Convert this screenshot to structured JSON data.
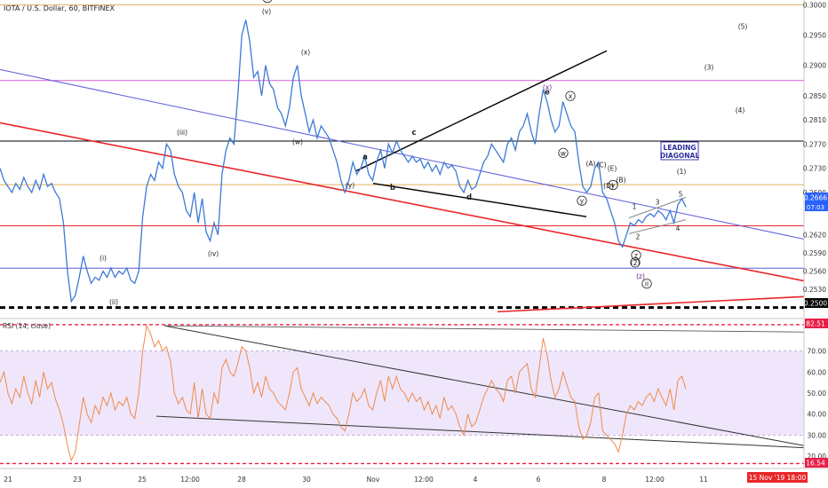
{
  "header": {
    "symbol_title": "IOTA / U.S. Dollar, 60, BITFINEX"
  },
  "rsi_panel": {
    "label": "RSI (14, close)"
  },
  "colors": {
    "price": "#3d7ad6",
    "rsi": "#f08a4b",
    "rsi_band": "#efe6fb",
    "red": "#e8262a",
    "blue": "#5b5bd9",
    "magenta": "#d55bd5",
    "orange": "#e0b15a",
    "black": "#000000",
    "last_price_bg": "#2962ff",
    "red_tag": "#e91e48"
  },
  "price_scale": {
    "ticks": [
      "0.3000",
      "0.2950",
      "0.2900",
      "0.2850",
      "0.2810",
      "0.2770",
      "0.2730",
      "0.2690",
      "0.2620",
      "0.2590",
      "0.2560",
      "0.2530"
    ],
    "last_price": "0.2666",
    "countdown": "07:03",
    "tag_2500": "0.2500"
  },
  "rsi_scale": {
    "ticks": [
      "70.00",
      "60.00",
      "50.00",
      "40.00",
      "30.00",
      "20.00"
    ],
    "top_tag": "82.51",
    "bottom_tag": "16.54"
  },
  "time_axis": {
    "ticks": [
      "21",
      "23",
      "25",
      "12:00",
      "28",
      "30",
      "Nov",
      "12:00",
      "4",
      "6",
      "8",
      "12:00",
      "11"
    ],
    "current_tag": "15 Nov '19   18:00"
  },
  "wave_labels": [
    "(i)",
    "(ii)",
    "(iii)",
    "(iv)",
    "(v)",
    "(x)",
    "(w)",
    "(y)",
    "(x)",
    "(z)",
    "(1)",
    "(2)",
    "(3)",
    "(4)",
    "(5)",
    "(A)",
    "(B)",
    "(C)",
    "(D)",
    "(E)",
    "a",
    "b",
    "c",
    "d",
    "e",
    "1",
    "2",
    "3",
    "4",
    "5",
    "i",
    "ii",
    "w",
    "x",
    "y",
    "z",
    "v"
  ],
  "annotations": {
    "leading_diagonal": [
      "LEADING",
      "DIAGONAL"
    ]
  },
  "chart_data": {
    "type": "line",
    "title": "IOTA / U.S. Dollar, 60, BITFINEX",
    "price_series": {
      "name": "IOTA/USD",
      "values": [
        0.273,
        0.271,
        0.27,
        0.269,
        0.2705,
        0.2695,
        0.2715,
        0.27,
        0.269,
        0.271,
        0.2695,
        0.272,
        0.27,
        0.2705,
        0.269,
        0.268,
        0.264,
        0.256,
        0.251,
        0.252,
        0.255,
        0.2585,
        0.256,
        0.254,
        0.255,
        0.2545,
        0.256,
        0.255,
        0.2565,
        0.255,
        0.256,
        0.2555,
        0.2565,
        0.2545,
        0.254,
        0.256,
        0.265,
        0.27,
        0.272,
        0.271,
        0.274,
        0.273,
        0.277,
        0.276,
        0.272,
        0.27,
        0.269,
        0.266,
        0.265,
        0.269,
        0.264,
        0.268,
        0.2625,
        0.261,
        0.264,
        0.262,
        0.272,
        0.276,
        0.278,
        0.277,
        0.285,
        0.295,
        0.2975,
        0.294,
        0.288,
        0.289,
        0.285,
        0.29,
        0.287,
        0.286,
        0.283,
        0.282,
        0.28,
        0.283,
        0.288,
        0.29,
        0.285,
        0.282,
        0.279,
        0.281,
        0.278,
        0.28,
        0.279,
        0.278,
        0.276,
        0.274,
        0.271,
        0.269,
        0.271,
        0.274,
        0.272,
        0.273,
        0.275,
        0.272,
        0.271,
        0.274,
        0.276,
        0.273,
        0.277,
        0.2755,
        0.2775,
        0.276,
        0.275,
        0.274,
        0.275,
        0.274,
        0.2745,
        0.273,
        0.274,
        0.2725,
        0.2735,
        0.272,
        0.274,
        0.273,
        0.2735,
        0.2725,
        0.27,
        0.269,
        0.271,
        0.2695,
        0.27,
        0.272,
        0.274,
        0.275,
        0.277,
        0.276,
        0.275,
        0.274,
        0.277,
        0.278,
        0.276,
        0.279,
        0.28,
        0.282,
        0.279,
        0.277,
        0.282,
        0.286,
        0.284,
        0.281,
        0.279,
        0.28,
        0.284,
        0.282,
        0.28,
        0.279,
        0.274,
        0.27,
        0.269,
        0.27,
        0.273,
        0.274,
        0.269,
        0.268,
        0.266,
        0.264,
        0.261,
        0.26,
        0.262,
        0.264,
        0.2635,
        0.2645,
        0.264,
        0.265,
        0.2655,
        0.265,
        0.266,
        0.2655,
        0.2645,
        0.266,
        0.264,
        0.267,
        0.268,
        0.2666
      ]
    },
    "rsi_series": {
      "name": "RSI (14, close)",
      "values": [
        55,
        60,
        50,
        45,
        52,
        48,
        58,
        50,
        45,
        56,
        48,
        60,
        52,
        55,
        47,
        42,
        35,
        25,
        18,
        22,
        35,
        48,
        40,
        36,
        44,
        40,
        48,
        44,
        50,
        42,
        46,
        44,
        48,
        40,
        38,
        50,
        70,
        82,
        78,
        72,
        75,
        70,
        72,
        65,
        50,
        45,
        48,
        42,
        40,
        55,
        38,
        52,
        40,
        38,
        50,
        45,
        62,
        66,
        60,
        58,
        64,
        72,
        70,
        62,
        50,
        55,
        48,
        58,
        52,
        50,
        46,
        44,
        42,
        50,
        60,
        62,
        52,
        48,
        44,
        50,
        45,
        48,
        46,
        44,
        40,
        38,
        34,
        32,
        40,
        50,
        46,
        48,
        52,
        44,
        42,
        50,
        56,
        46,
        58,
        52,
        58,
        52,
        50,
        46,
        50,
        46,
        48,
        42,
        46,
        40,
        44,
        38,
        48,
        42,
        44,
        40,
        34,
        30,
        40,
        34,
        36,
        42,
        48,
        52,
        56,
        52,
        50,
        46,
        56,
        58,
        50,
        60,
        62,
        64,
        52,
        48,
        62,
        76,
        68,
        56,
        48,
        52,
        60,
        54,
        48,
        46,
        34,
        28,
        30,
        36,
        48,
        50,
        32,
        30,
        28,
        26,
        22,
        30,
        40,
        44,
        42,
        46,
        44,
        48,
        50,
        46,
        52,
        48,
        44,
        52,
        42,
        56,
        58,
        52
      ]
    },
    "x_tick_labels": [
      "21",
      "23",
      "25",
      "12:00",
      "28",
      "30",
      "Nov",
      "12:00",
      "4",
      "6",
      "8",
      "12:00",
      "11"
    ],
    "y_range": [
      0.2495,
      0.3005
    ],
    "rsi_range": [
      15,
      85
    ],
    "horizontal_levels": [
      0.3,
      0.2875,
      0.2775,
      0.2703,
      0.2635,
      0.2565,
      0.25
    ],
    "grid": false,
    "legend": "none"
  }
}
